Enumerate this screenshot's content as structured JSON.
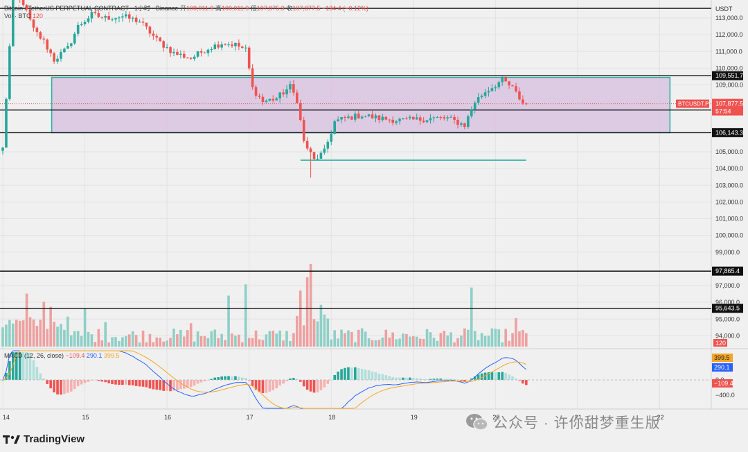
{
  "header": {
    "symbol_line": "Bitcoin / TetherUS PERPETUAL CONTRACT · 1小时 · Binance",
    "open_label": "开",
    "open_value": "108,011.9",
    "high_label": "高",
    "high_value": "108,011.9",
    "low_label": "低",
    "low_value": "107,875.3",
    "close_label": "收",
    "close_value": "107,877.5",
    "change": "−134.4 (−0.12%)",
    "vol_label": "Vol · BTC",
    "vol_value": "120",
    "macd_label": "MACD (12, 26, close)",
    "macd_values": [
      "−109.4",
      "290.1",
      "399.5"
    ]
  },
  "currency": "USDT",
  "price_axis_ticks": [
    "113,000.0",
    "112,000.0",
    "111,000.0",
    "110,000.0",
    "109,000.0",
    "105,000.0",
    "104,000.0",
    "103,000.0",
    "102,000.0",
    "101,000.0",
    "100,000.0",
    "99,000.0",
    "97,000.0",
    "96,000.0",
    "95,000.0",
    "94,000.0"
  ],
  "price_tick_values": [
    113000,
    112000,
    111000,
    110000,
    109000,
    105000,
    104000,
    103000,
    102000,
    101000,
    100000,
    99000,
    97000,
    96000,
    95000,
    94000
  ],
  "level_labels": [
    {
      "value": 109551.7,
      "text": "109,551.7"
    },
    {
      "value": 107501.7,
      "text": "107,501.7"
    },
    {
      "value": 106143.3,
      "text": "106,143.3"
    },
    {
      "value": 97865.4,
      "text": "97,865.4"
    },
    {
      "value": 95643.5,
      "text": "95,643.5"
    }
  ],
  "last_price": {
    "value": 107877.5,
    "text": "107,877.5",
    "symbol": "BTCUSDT.P",
    "countdown": "57:54"
  },
  "volume_badge": "120",
  "macd_axis": {
    "ticks": [
      "0.0",
      "−400.0"
    ],
    "badges": [
      "399.5",
      "290.1",
      "−109.4"
    ]
  },
  "x_axis": {
    "labels": [
      "14",
      "15",
      "16",
      "17",
      "18",
      "19",
      "20",
      "21",
      "22"
    ],
    "hours": [
      0,
      24,
      48,
      72,
      96,
      120,
      144,
      168,
      192
    ]
  },
  "watermark": "公众号 · 许你甜梦重生版",
  "brand": "TradingView",
  "colors": {
    "up": "#26a69a",
    "down": "#ef5350",
    "zone": "#d9c3e0",
    "zone_border": "#2fb3a1",
    "ma_blue": "#2962ff",
    "ma_orange": "#f5a623"
  },
  "chart_data": {
    "type": "candlestick",
    "title": "Bitcoin / TetherUS PERPETUAL CONTRACT · 1小时 · Binance",
    "ylabel": "USDT",
    "ylim": [
      93500,
      114100
    ],
    "x_unit": "hours since Jun 14 00:00",
    "anchors": [
      {
        "t": 0,
        "p": 105200
      },
      {
        "t": 3,
        "p": 114300
      },
      {
        "t": 6,
        "p": 113900
      },
      {
        "t": 9,
        "p": 112300
      },
      {
        "t": 12,
        "p": 111600
      },
      {
        "t": 15,
        "p": 110500
      },
      {
        "t": 19,
        "p": 111200
      },
      {
        "t": 22,
        "p": 112500
      },
      {
        "t": 26,
        "p": 113200
      },
      {
        "t": 30,
        "p": 113000
      },
      {
        "t": 35,
        "p": 113100
      },
      {
        "t": 40,
        "p": 112800
      },
      {
        "t": 45,
        "p": 111700
      },
      {
        "t": 50,
        "p": 110900
      },
      {
        "t": 55,
        "p": 110600
      },
      {
        "t": 60,
        "p": 111200
      },
      {
        "t": 64,
        "p": 111500
      },
      {
        "t": 68,
        "p": 111400
      },
      {
        "t": 71,
        "p": 111100
      },
      {
        "t": 73,
        "p": 108800
      },
      {
        "t": 76,
        "p": 108000
      },
      {
        "t": 80,
        "p": 108200
      },
      {
        "t": 84,
        "p": 108900
      },
      {
        "t": 86,
        "p": 108100
      },
      {
        "t": 88,
        "p": 105600
      },
      {
        "t": 91,
        "p": 104500
      },
      {
        "t": 94,
        "p": 105000
      },
      {
        "t": 97,
        "p": 106800
      },
      {
        "t": 100,
        "p": 107000
      },
      {
        "t": 105,
        "p": 107200
      },
      {
        "t": 110,
        "p": 107000
      },
      {
        "t": 115,
        "p": 106900
      },
      {
        "t": 120,
        "p": 106900
      },
      {
        "t": 125,
        "p": 107000
      },
      {
        "t": 130,
        "p": 107000
      },
      {
        "t": 135,
        "p": 106600
      },
      {
        "t": 138,
        "p": 108000
      },
      {
        "t": 141,
        "p": 108600
      },
      {
        "t": 144,
        "p": 109000
      },
      {
        "t": 146,
        "p": 109300
      },
      {
        "t": 149,
        "p": 108800
      },
      {
        "t": 152,
        "p": 107900
      },
      {
        "t": 153,
        "p": 107877
      }
    ],
    "volume_spikes": [
      {
        "t": 7,
        "v": 5200
      },
      {
        "t": 12,
        "v": 4400
      },
      {
        "t": 14,
        "v": 3900
      },
      {
        "t": 24,
        "v": 3700
      },
      {
        "t": 30,
        "v": 2400
      },
      {
        "t": 55,
        "v": 2300
      },
      {
        "t": 66,
        "v": 5000
      },
      {
        "t": 71,
        "v": 6100
      },
      {
        "t": 87,
        "v": 5500
      },
      {
        "t": 89,
        "v": 6800
      },
      {
        "t": 90,
        "v": 8100
      },
      {
        "t": 93,
        "v": 4100
      },
      {
        "t": 137,
        "v": 5800
      },
      {
        "t": 150,
        "v": 2800
      }
    ],
    "zone": {
      "t_start": 14.3,
      "t_end": 195,
      "top": 109450,
      "bottom": 106143.3
    },
    "support_line": {
      "t_start": 87,
      "t_end": 153,
      "value": 104500
    },
    "horizontal_levels": [
      109551.7,
      107501.7,
      106143.3,
      97865.4,
      95643.5
    ],
    "macd": {
      "macd": -109.4,
      "signal": 290.1,
      "histogram": 399.5
    }
  }
}
